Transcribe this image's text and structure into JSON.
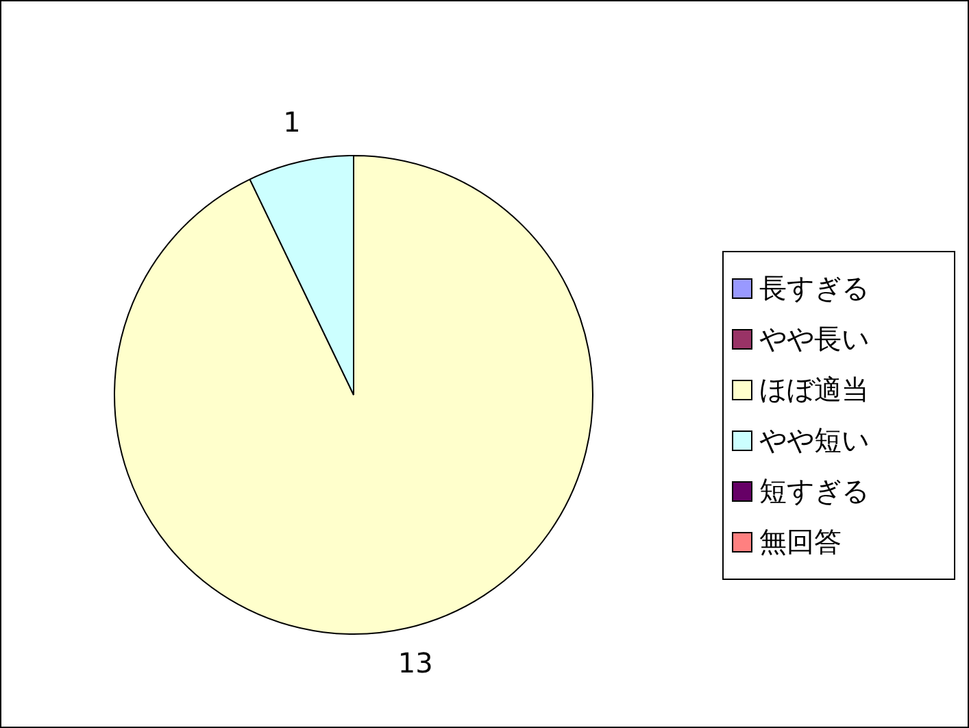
{
  "chart_data": {
    "type": "pie",
    "categories": [
      "長すぎる",
      "やや長い",
      "ほぼ適当",
      "やや短い",
      "短すぎる",
      "無回答"
    ],
    "values": [
      0,
      0,
      13,
      1,
      0,
      0
    ],
    "colors": [
      "#9999ff",
      "#993366",
      "#ffffcc",
      "#ccffff",
      "#660066",
      "#ff8080"
    ],
    "value_labels": [
      null,
      null,
      "13",
      "1",
      null,
      null
    ],
    "legend": "right"
  }
}
